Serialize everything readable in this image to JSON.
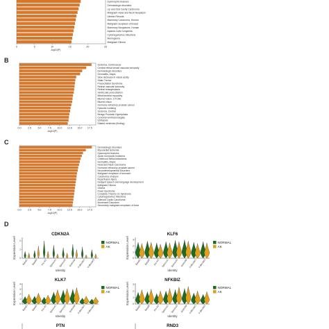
{
  "panels": {
    "A": {
      "letter": ""
    },
    "B": {
      "letter": "B"
    },
    "C": {
      "letter": "C"
    },
    "D": {
      "letter": "D"
    }
  },
  "colors": {
    "bar": "#d8772a",
    "normal": "#1f6b1f",
    "ak": "#e0a01a",
    "grid": "#bbbbbb"
  },
  "chart_data": [
    {
      "type": "bar",
      "orientation": "horizontal",
      "categories": [
        "Intervertebral Disc Degeneration",
        "Dysmorphic features",
        "Dermatologic disorders",
        "Lip and Oral Cavity Carcinoma",
        "Malignant Head and Neck Neoplasm",
        "Uterine Fibroids",
        "Mammary Carcinoma, Human",
        "Malignant neoplasm of breast",
        "Mammary Neoplasms, Human",
        "Aplasia Cutis Congenita",
        "Cytomegalovirus Infections",
        "Meningioma",
        "Malignant Glioma"
      ],
      "values": [
        18.5,
        18.0,
        17.7,
        17.4,
        17.1,
        16.8,
        16.6,
        16.4,
        16.2,
        16.0,
        15.8,
        15.6,
        15.4
      ],
      "xlabel": "-log10(P)",
      "xticks": [
        "0",
        "5",
        "10",
        "15",
        "20",
        "25"
      ],
      "xlim": [
        0,
        25
      ]
    },
    {
      "type": "bar",
      "orientation": "horizontal",
      "categories": [
        "Scotoma, Centrocecal",
        "Central retinal vessel vascular tortuosity",
        "Dermatologic disorders",
        "Dermatitis, Atopic",
        "Slow decrease in visual acuity",
        "Static Tremor",
        "Preexcitation Syndrome",
        "Retinal vascular tortuosity",
        "Retinal telangiectasia",
        "Ventricular preexcitation",
        "Mitochondrial myopathy",
        "Blurred vision, CTCAE",
        "Blurred vision",
        "Hormone refractory prostate cancer",
        "Episodic vomiting",
        "Scotoma, Central",
        "Benign Prostatic Hyperplasia",
        "Cerebral ventriculomegaly",
        "Ichthyosis",
        "Dilated ventricles (finding)"
      ],
      "values": [
        17.9,
        16.6,
        15.6,
        15.1,
        14.1,
        13.9,
        13.8,
        13.7,
        13.6,
        13.5,
        13.3,
        13.2,
        13.1,
        12.9,
        12.7,
        12.6,
        12.4,
        12.3,
        12.2,
        12.0
      ],
      "xlabel": "-log10(P)",
      "xticks": [
        "0.0",
        "2.5",
        "5.0",
        "7.5",
        "10.0",
        "12.5",
        "15.0",
        "17.5"
      ],
      "xlim": [
        0,
        19
      ]
    },
    {
      "type": "bar",
      "orientation": "horizontal",
      "categories": [
        "Dermatologic disorders",
        "Myocardial Ischemia",
        "Dysmorphic features",
        "Acute monocytic leukemia",
        "Childhood Medulloblastoma",
        "Dermatitis, Atopic",
        "Head and Neck Carcinoma",
        "Hormone refractory prostate cancer",
        "Neurodevelopmental Disorders",
        "Malignant neoplasm of stomach",
        "Carcinoma of larynx",
        "Reperfusion Injury",
        "Delayed speech and language development",
        "Malignant Glioma",
        "Glioma",
        "Down Syndrome",
        "Complete Trisomy 21 Syndrome",
        "Cytomegalovirus Infections",
        "Adenoid Cystic Carcinoma",
        "Movement Disorders",
        "Secondary malignant neoplasm of bone"
      ],
      "values": [
        18.0,
        16.5,
        15.8,
        15.5,
        15.2,
        15.0,
        14.8,
        14.6,
        14.5,
        14.3,
        14.2,
        14.1,
        14.0,
        13.9,
        13.8,
        13.7,
        13.6,
        13.5,
        13.4,
        13.3,
        13.2
      ],
      "xlabel": "-log10(P)",
      "xticks": [
        "0.0",
        "2.5",
        "5.0",
        "7.5",
        "10.0",
        "12.5",
        "15.0",
        "17.5"
      ],
      "xlim": [
        0,
        19
      ]
    },
    {
      "type": "violin",
      "gene": "CDKN2A",
      "groups": [
        "Basal1",
        "Basal2",
        "Pro KC",
        "Spinous1",
        "Spinous2",
        "Granular",
        "Follicular1",
        "Follicular2"
      ],
      "normal_level": [
        0.8,
        0.9,
        2.0,
        1.5,
        1.2,
        1.6,
        1.3,
        1.0
      ],
      "ak_level": [
        0.6,
        1.4,
        0.8,
        0.5,
        0.6,
        1.0,
        0.4,
        0.5
      ],
      "ylabel": "Expression Level",
      "xlabel": "Identity",
      "yticks": [
        "0",
        "1",
        "2"
      ]
    },
    {
      "type": "violin",
      "gene": "KLF6",
      "groups": [
        "Basal1",
        "Basal2",
        "Pro KC",
        "Spinous1",
        "Spinous2",
        "Granular",
        "Follicular1",
        "Follicular2"
      ],
      "normal_level": [
        2.6,
        2.8,
        2.5,
        2.7,
        2.9,
        3.0,
        2.6,
        2.7
      ],
      "ak_level": [
        2.4,
        2.6,
        2.3,
        2.5,
        2.7,
        2.8,
        2.4,
        2.5
      ],
      "ylabel": "Expression Level",
      "xlabel": "Identity",
      "yticks": [
        "0",
        "1",
        "2",
        "3"
      ]
    },
    {
      "type": "violin",
      "gene": "KLK7",
      "groups": [
        "Basal1",
        "Basal2",
        "Pro KC",
        "Spinous1",
        "Spinous2",
        "Granular",
        "Follicular1",
        "Follicular2"
      ],
      "normal_level": [
        1.5,
        1.6,
        1.4,
        2.4,
        2.8,
        3.0,
        1.2,
        1.0
      ],
      "ak_level": [
        2.0,
        2.2,
        1.8,
        2.9,
        3.1,
        3.3,
        1.6,
        1.4
      ],
      "ylabel": "Expression Level",
      "xlabel": "Identity",
      "yticks": [
        "0",
        "1",
        "2",
        "3",
        "4"
      ]
    },
    {
      "type": "violin",
      "gene": "NFKBIZ",
      "groups": [
        "Basal1",
        "Basal2",
        "Pro KC",
        "Spinous1",
        "Spinous2",
        "Granular",
        "Follicular1",
        "Follicular2"
      ],
      "normal_level": [
        1.8,
        1.9,
        1.6,
        2.0,
        2.2,
        2.4,
        1.7,
        1.5
      ],
      "ak_level": [
        2.2,
        2.3,
        2.0,
        2.4,
        2.6,
        2.7,
        2.0,
        1.9
      ],
      "ylabel": "Expression Level",
      "xlabel": "Identity",
      "yticks": [
        "0",
        "1",
        "2",
        "3"
      ]
    },
    {
      "type": "violin",
      "gene": "PTN",
      "groups": [],
      "normal_level": [],
      "ak_level": [],
      "ylabel": "",
      "xlabel": "",
      "yticks": []
    },
    {
      "type": "violin",
      "gene": "RND3",
      "groups": [],
      "normal_level": [],
      "ak_level": [],
      "ylabel": "",
      "xlabel": "",
      "yticks": []
    }
  ],
  "legend": {
    "normal": "NORMAL",
    "ak": "AK"
  }
}
